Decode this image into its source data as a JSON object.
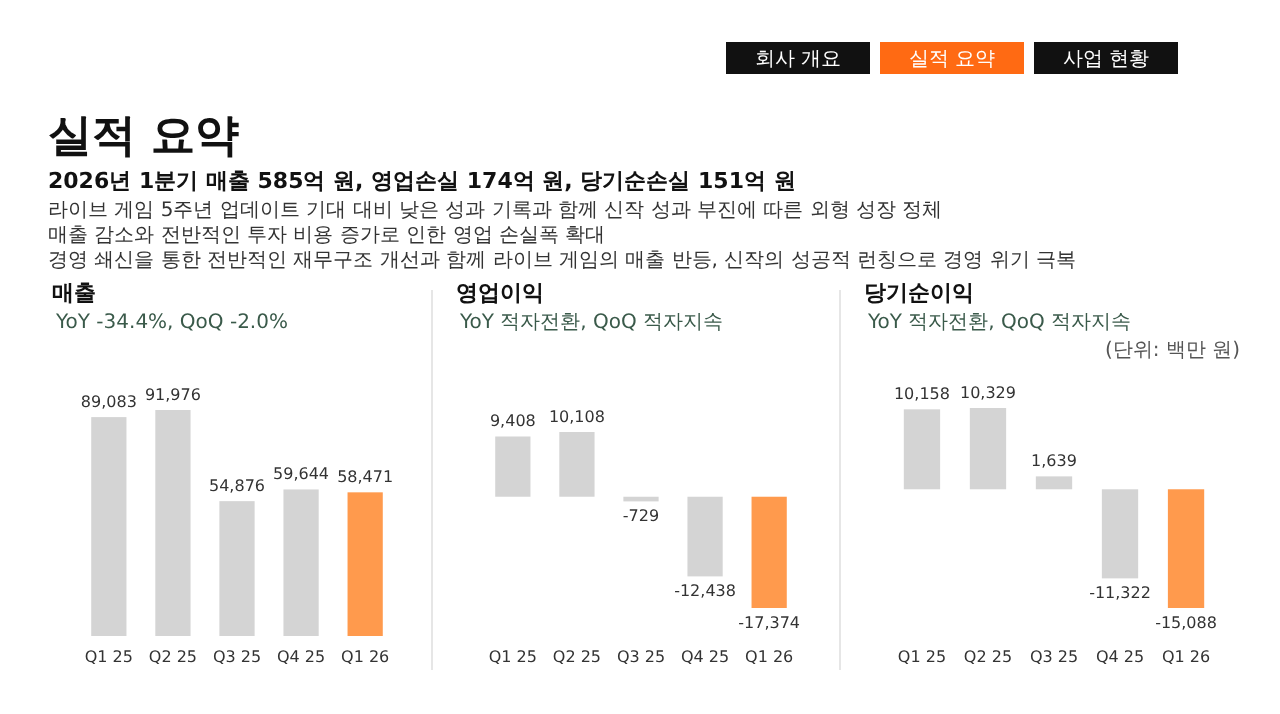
{
  "chart_data": [
    {
      "type": "other",
      "title": "실적 요약",
      "subtitle": "2026년 1분기 매출 585억 원, 영업손실 174억 원, 당기순손실 151억 원",
      "colors": [
        "#111111",
        "#ff6a13",
        "#111111"
      ],
      "annotations": [
        "회사 개요",
        "실적 요약",
        "사업 현황",
        "라이브 게임 5주년 업데이트 기대 대비 낮은 성과 기록과 함께 신작 성과 부진에 따른 외형 성장 정체",
        "매출 감소와 전반적인 투자 비용 증가로 인한 영업 손실폭 확대",
        "경영 쇄신을 통한 전반적인 재무구조 개선과 함께 라이브 게임의 매출 반등, 신작의 성공적 런칭으로 경영 위기 극복"
      ]
    },
    {
      "type": "bar",
      "title": "매출",
      "subtitle": "YoY -34.4%, QoQ -2.0%",
      "categories": [
        "Q1 25",
        "Q2 25",
        "Q3 25",
        "Q4 25",
        "Q1 26"
      ],
      "values": [
        89083,
        91976,
        54876,
        59644,
        58471
      ],
      "value_labels": [
        "89,083",
        "91,976",
        "54,876",
        "59,644",
        "58,471"
      ],
      "colors": [
        "#d4d4d4",
        "#d4d4d4",
        "#d4d4d4",
        "#d4d4d4",
        "#ff9a4d"
      ],
      "data_labels": false
    },
    {
      "type": "bar",
      "title": "영업이익",
      "subtitle": "YoY 적자전환, QoQ 적자지속",
      "categories": [
        "Q1 25",
        "Q2 25",
        "Q3 25",
        "Q4 25",
        "Q1 26"
      ],
      "values": [
        9408,
        10108,
        -729,
        -12438,
        -17374
      ],
      "value_labels": [
        "9,408",
        "10,108",
        "-729",
        "-12,438",
        "-17,374"
      ],
      "colors": [
        "#d4d4d4",
        "#d4d4d4",
        "#d4d4d4",
        "#d4d4d4",
        "#ff9a4d"
      ],
      "data_labels": false
    },
    {
      "type": "bar",
      "title": "당기순이익",
      "subtitle": "YoY 적자전환, QoQ 적자지속",
      "annotations": [
        "(단위: 백만 원)"
      ],
      "categories": [
        "Q1 25",
        "Q2 25",
        "Q3 25",
        "Q4 25",
        "Q1 26"
      ],
      "values": [
        10158,
        10329,
        1639,
        -11322,
        -15088
      ],
      "value_labels": [
        "10,158",
        "10,329",
        "1,639",
        "-11,322",
        "-15,088"
      ],
      "colors": [
        "#d4d4d4",
        "#d4d4d4",
        "#d4d4d4",
        "#d4d4d4",
        "#ff9a4d"
      ],
      "data_labels": false
    }
  ]
}
